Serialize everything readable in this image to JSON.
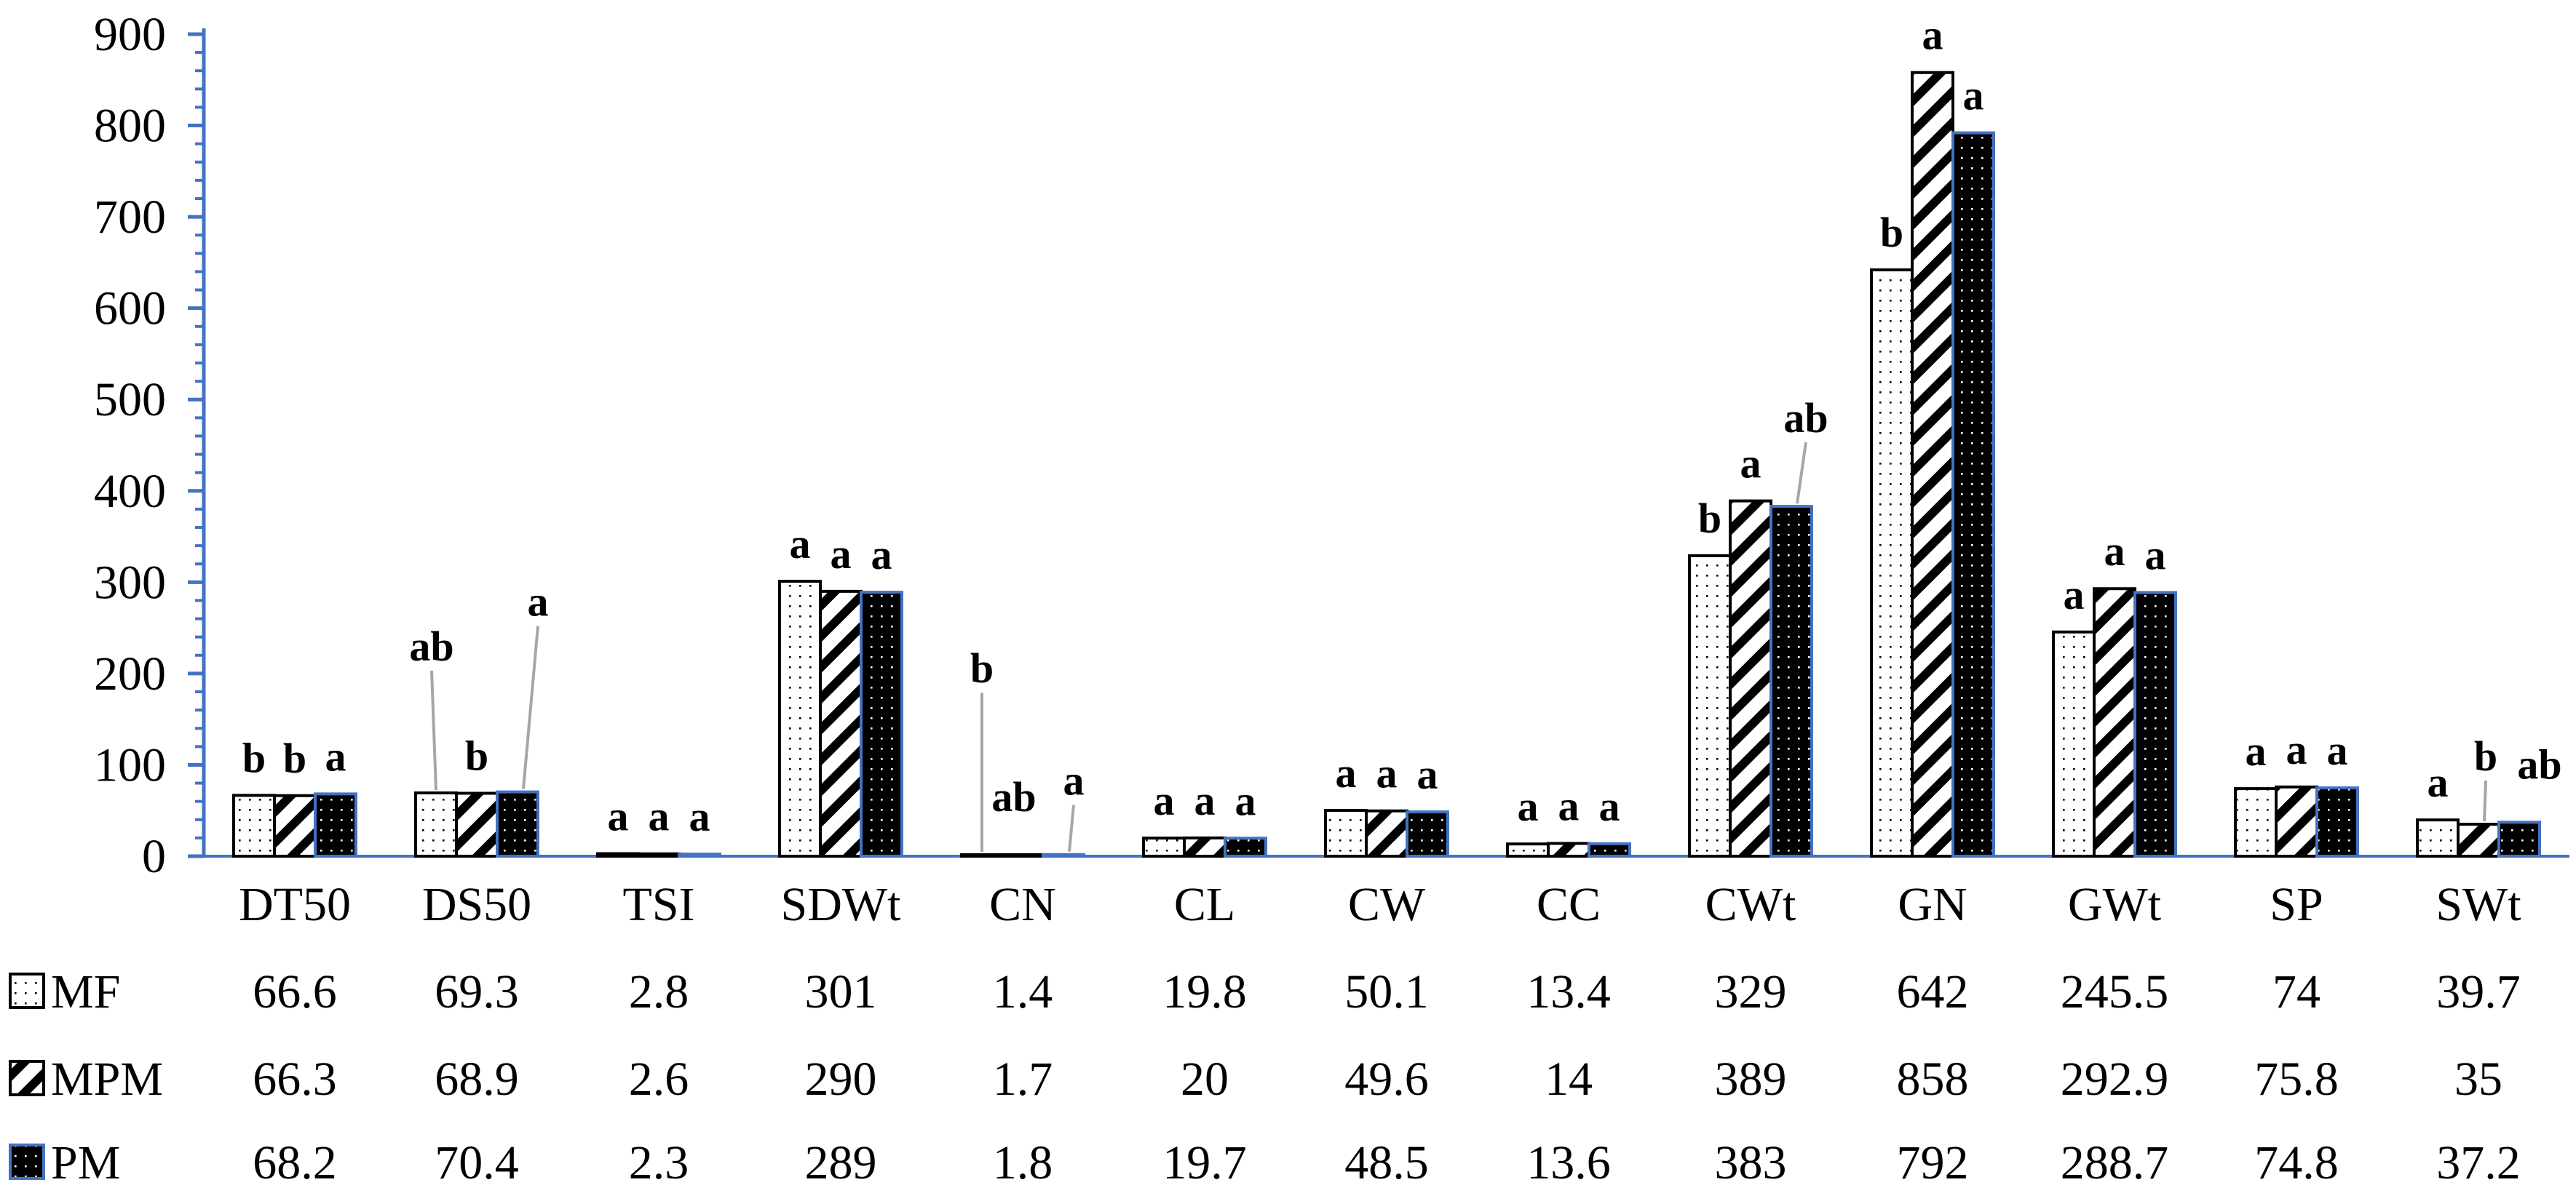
{
  "chart_data": {
    "type": "bar",
    "title": "",
    "xlabel": "",
    "ylabel": "",
    "ylim": [
      0,
      900
    ],
    "yticks": [
      0,
      100,
      200,
      300,
      400,
      500,
      600,
      700,
      800,
      900
    ],
    "categories": [
      "DT50",
      "DS50",
      "TSI",
      "SDWt",
      "CN",
      "CL",
      "CW",
      "CC",
      "CWt",
      "GN",
      "GWt",
      "SP",
      "SWt"
    ],
    "series": [
      {
        "name": "MF",
        "pattern": "dots",
        "values": [
          66.6,
          69.3,
          2.8,
          301,
          1.4,
          19.8,
          50.1,
          13.4,
          329,
          642,
          245.5,
          74,
          39.7
        ],
        "labels": [
          "66.6",
          "69.3",
          "2.8",
          "301",
          "1.4",
          "19.8",
          "50.1",
          "13.4",
          "329",
          "642",
          "245.5",
          "74",
          "39.7"
        ],
        "significance": [
          "b",
          "ab",
          "a",
          "a",
          "b",
          "a",
          "a",
          "a",
          "b",
          "b",
          "a",
          "a",
          "a"
        ]
      },
      {
        "name": "MPM",
        "pattern": "diagonal-stripes",
        "values": [
          66.3,
          68.9,
          2.6,
          290,
          1.7,
          20,
          49.6,
          14,
          389,
          858,
          292.9,
          75.8,
          35
        ],
        "labels": [
          "66.3",
          "68.9",
          "2.6",
          "290",
          "1.7",
          "20",
          "49.6",
          "14",
          "389",
          "858",
          "292.9",
          "75.8",
          "35"
        ],
        "significance": [
          "b",
          "b",
          "a",
          "a",
          "ab",
          "a",
          "a",
          "a",
          "a",
          "a",
          "a",
          "a",
          "b"
        ]
      },
      {
        "name": "PM",
        "pattern": "black-dots",
        "values": [
          68.2,
          70.4,
          2.3,
          289,
          1.8,
          19.7,
          48.5,
          13.6,
          383,
          792,
          288.7,
          74.8,
          37.2
        ],
        "labels": [
          "68.2",
          "70.4",
          "2.3",
          "289",
          "1.8",
          "19.7",
          "48.5",
          "13.6",
          "383",
          "792",
          "288.7",
          "74.8",
          "37.2"
        ],
        "significance": [
          "a",
          "a",
          "a",
          "a",
          "a",
          "a",
          "a",
          "a",
          "ab",
          "a",
          "a",
          "a",
          "ab"
        ]
      }
    ],
    "legend": "data-table-below",
    "grid": false
  },
  "colors": {
    "axis": "#4472C4",
    "bar_outline": "#000000",
    "pm_outline": "#4472C4",
    "leader": "#a6a6a6",
    "text": "#000000"
  }
}
